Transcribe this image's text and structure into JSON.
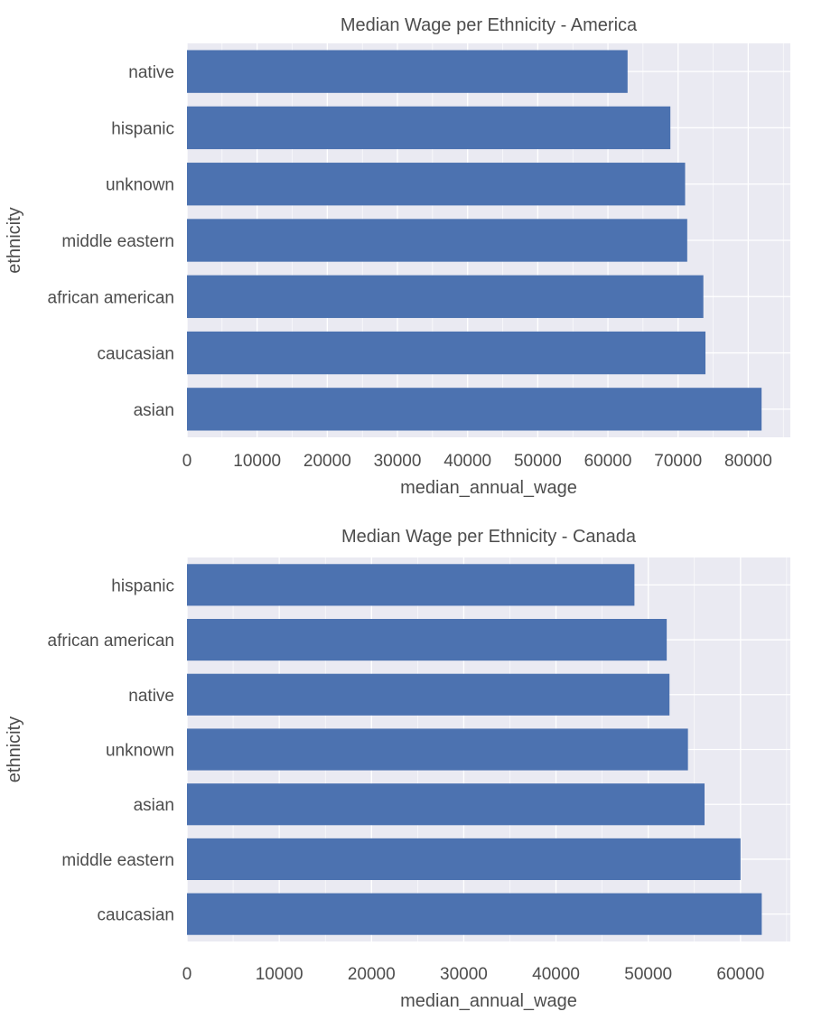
{
  "chart_data": [
    {
      "type": "bar",
      "orientation": "horizontal",
      "title": "Median Wage per Ethnicity - America",
      "xlabel": "median_annual_wage",
      "ylabel": "ethnicity",
      "categories": [
        "native",
        "hispanic",
        "unknown",
        "middle eastern",
        "african american",
        "caucasian",
        "asian"
      ],
      "values": [
        62800,
        68900,
        71000,
        71300,
        73600,
        73900,
        81900
      ],
      "xlim": [
        0,
        86000
      ],
      "xticks": [
        0,
        10000,
        20000,
        30000,
        40000,
        50000,
        60000,
        70000,
        80000
      ],
      "grid": true,
      "bar_color": "#4c72b0",
      "background_color": "#eaeaf2"
    },
    {
      "type": "bar",
      "orientation": "horizontal",
      "title": "Median Wage per Ethnicity - Canada",
      "xlabel": "median_annual_wage",
      "ylabel": "ethnicity",
      "categories": [
        "hispanic",
        "african american",
        "native",
        "unknown",
        "asian",
        "middle eastern",
        "caucasian"
      ],
      "values": [
        48500,
        52000,
        52300,
        54300,
        56100,
        60000,
        62300
      ],
      "xlim": [
        0,
        65400
      ],
      "xticks": [
        0,
        10000,
        20000,
        30000,
        40000,
        50000,
        60000
      ],
      "grid": true,
      "bar_color": "#4c72b0",
      "background_color": "#eaeaf2"
    }
  ]
}
